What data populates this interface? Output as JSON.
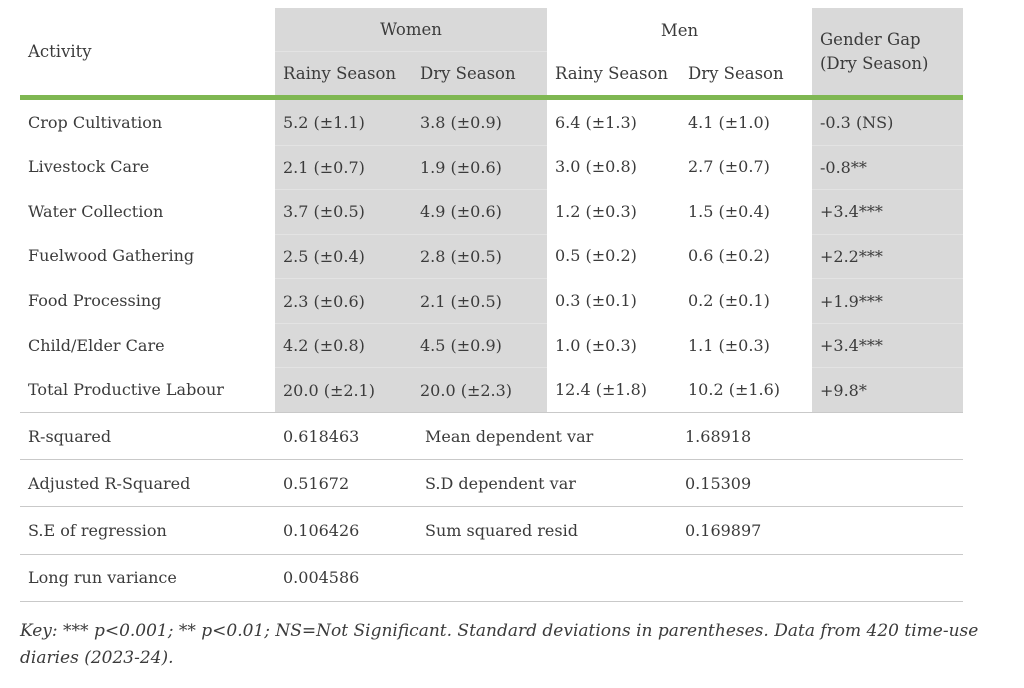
{
  "table": {
    "header": {
      "activity_label": "Activity",
      "women_label": "Women",
      "men_label": "Men",
      "women_sub": [
        "Rainy Season",
        "Dry Season"
      ],
      "men_sub": [
        "Rainy Season",
        "Dry Season"
      ],
      "gap_label": "Gender Gap (Dry Season)"
    },
    "rows": [
      {
        "activity": "Crop Cultivation",
        "w_rainy": "5.2 (±1.1)",
        "w_dry": "3.8 (±0.9)",
        "m_rainy": "6.4 (±1.3)",
        "m_dry": "4.1 (±1.0)",
        "gap": "-0.3 (NS)"
      },
      {
        "activity": "Livestock Care",
        "w_rainy": "2.1 (±0.7)",
        "w_dry": "1.9 (±0.6)",
        "m_rainy": "3.0 (±0.8)",
        "m_dry": "2.7 (±0.7)",
        "gap": "-0.8**"
      },
      {
        "activity": "Water Collection",
        "w_rainy": "3.7 (±0.5)",
        "w_dry": "4.9 (±0.6)",
        "m_rainy": "1.2 (±0.3)",
        "m_dry": "1.5 (±0.4)",
        "gap": "+3.4***"
      },
      {
        "activity": "Fuelwood Gathering",
        "w_rainy": "2.5 (±0.4)",
        "w_dry": "2.8 (±0.5)",
        "m_rainy": "0.5 (±0.2)",
        "m_dry": "0.6 (±0.2)",
        "gap": "+2.2***"
      },
      {
        "activity": "Food Processing",
        "w_rainy": "2.3 (±0.6)",
        "w_dry": "2.1 (±0.5)",
        "m_rainy": "0.3 (±0.1)",
        "m_dry": "0.2 (±0.1)",
        "gap": "+1.9***"
      },
      {
        "activity": "Child/Elder Care",
        "w_rainy": "4.2 (±0.8)",
        "w_dry": "4.5 (±0.9)",
        "m_rainy": "1.0 (±0.3)",
        "m_dry": "1.1 (±0.3)",
        "gap": "+3.4***"
      },
      {
        "activity": "Total Productive Labour",
        "w_rainy": "20.0 (±2.1)",
        "w_dry": "20.0 (±2.3)",
        "m_rainy": "12.4 (±1.8)",
        "m_dry": "10.2 (±1.6)",
        "gap": "+9.8*"
      }
    ],
    "stats": [
      {
        "label1": "R-squared",
        "value1": "0.618463",
        "label2": "Mean dependent var",
        "value2": "1.68918"
      },
      {
        "label1": "Adjusted R-Squared",
        "value1": "0.51672",
        "label2": "S.D dependent var",
        "value2": "0.15309"
      },
      {
        "label1": "S.E of regression",
        "value1": "0.106426",
        "label2": "Sum squared resid",
        "value2": "0.169897"
      },
      {
        "label1": "Long run variance",
        "value1": "0.004586",
        "label2": "",
        "value2": ""
      }
    ],
    "footnote": "Key: *** p<0.001; ** p<0.01; NS=Not Significant. Standard deviations in parentheses. Data from 420 time-use diaries (2023-24)."
  },
  "colors": {
    "accent_green": "#7fb752",
    "column_gray": "#d9d9d9",
    "text": "#3b3b3b",
    "divider": "#c9c9c9",
    "subtle_divider": "#e3e3e3"
  }
}
